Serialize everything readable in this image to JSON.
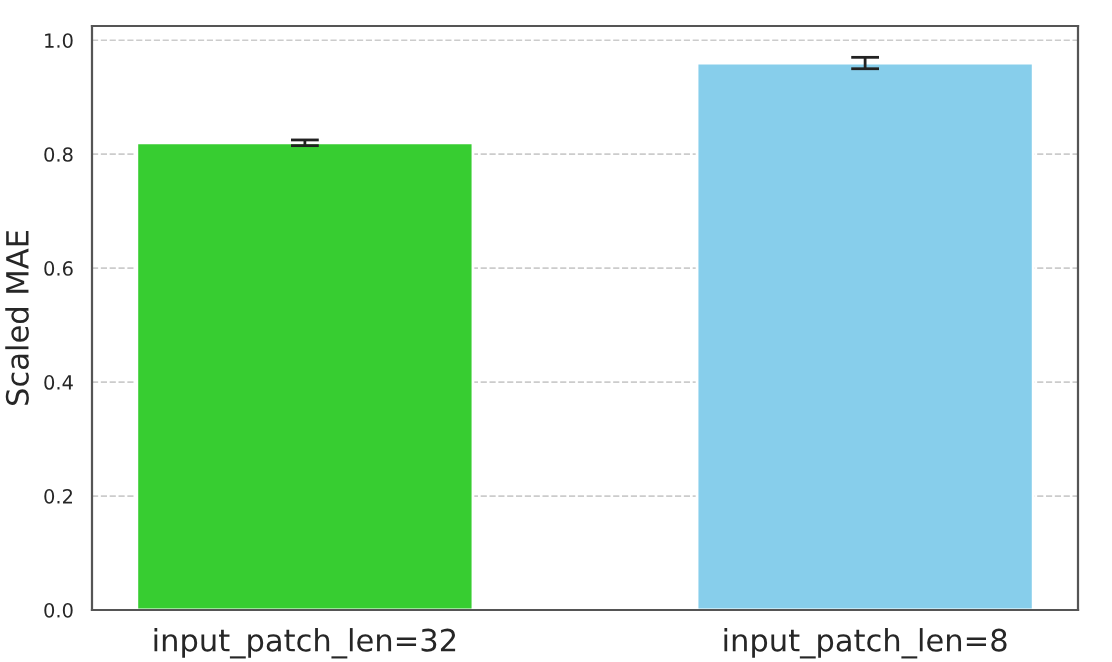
{
  "chart_data": {
    "type": "bar",
    "ylabel": "Scaled MAE",
    "categories": [
      "input_patch_len=32",
      "input_patch_len=8"
    ],
    "values": [
      0.82,
      0.96
    ],
    "errors": [
      0.005,
      0.01
    ],
    "colors": [
      "#37cd31",
      "#87ceeb"
    ],
    "ylim": [
      0,
      1.025
    ],
    "yticks": [
      {
        "value": 0,
        "label": "0.0"
      },
      0.2,
      0.4,
      0.6,
      0.8,
      {
        "value": 1,
        "label": "1.0"
      }
    ],
    "grid": "y"
  }
}
